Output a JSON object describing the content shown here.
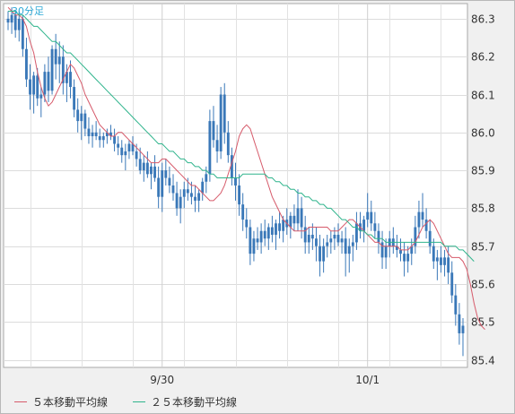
{
  "chart_data": {
    "type": "candlestick",
    "title": "30分足",
    "y_axis": {
      "position": "right",
      "range": [
        85.38,
        86.34
      ],
      "ticks": [
        "86.3",
        "86.2",
        "86.1",
        "86.0",
        "85.9",
        "85.8",
        "85.7",
        "85.6",
        "85.5",
        "85.4"
      ],
      "tick_values": [
        86.3,
        86.2,
        86.1,
        86.0,
        85.9,
        85.8,
        85.7,
        85.6,
        85.5,
        85.4
      ]
    },
    "x_axis": {
      "tick_labels": [
        "9/30",
        "10/1"
      ],
      "tick_indices": [
        42,
        98
      ]
    },
    "grid": true,
    "legend": [
      {
        "label": "５本移動平均線",
        "color": "#d65a6a"
      },
      {
        "label": "２５本移動平均線",
        "color": "#2fb48c"
      }
    ],
    "series": [
      {
        "name": "５本移動平均線",
        "color": "#d65a6a",
        "values": [
          86.33,
          86.32,
          86.31,
          86.31,
          86.3,
          86.28,
          86.24,
          86.21,
          86.16,
          86.12,
          86.09,
          86.07,
          86.08,
          86.1,
          86.12,
          86.14,
          86.16,
          86.18,
          86.17,
          86.15,
          86.13,
          86.1,
          86.08,
          86.06,
          86.04,
          86.02,
          86.01,
          86.0,
          85.99,
          85.99,
          86.0,
          86.0,
          85.99,
          85.98,
          85.97,
          85.96,
          85.95,
          85.94,
          85.93,
          85.92,
          85.92,
          85.92,
          85.93,
          85.93,
          85.92,
          85.91,
          85.9,
          85.89,
          85.88,
          85.87,
          85.86,
          85.86,
          85.85,
          85.84,
          85.83,
          85.82,
          85.82,
          85.83,
          85.84,
          85.86,
          85.89,
          85.92,
          85.95,
          85.99,
          86.01,
          86.02,
          86.01,
          85.98,
          85.95,
          85.92,
          85.89,
          85.86,
          85.83,
          85.81,
          85.79,
          85.77,
          85.76,
          85.75,
          85.74,
          85.74,
          85.74,
          85.74,
          85.75,
          85.75,
          85.75,
          85.75,
          85.75,
          85.75,
          85.74,
          85.74,
          85.74,
          85.75,
          85.76,
          85.77,
          85.77,
          85.76,
          85.75,
          85.74,
          85.73,
          85.72,
          85.71,
          85.71,
          85.7,
          85.7,
          85.7,
          85.7,
          85.7,
          85.69,
          85.69,
          85.69,
          85.7,
          85.71,
          85.73,
          85.75,
          85.76,
          85.77,
          85.76,
          85.74,
          85.72,
          85.7,
          85.68,
          85.67,
          85.67,
          85.67,
          85.66,
          85.64,
          85.6,
          85.55,
          85.51,
          85.49,
          85.48
        ]
      },
      {
        "name": "２５本移動平均線",
        "color": "#2fb48c",
        "values": [
          86.32,
          86.32,
          86.32,
          86.31,
          86.31,
          86.3,
          86.29,
          86.28,
          86.28,
          86.27,
          86.26,
          86.25,
          86.24,
          86.24,
          86.23,
          86.22,
          86.21,
          86.21,
          86.2,
          86.19,
          86.18,
          86.17,
          86.16,
          86.15,
          86.14,
          86.13,
          86.12,
          86.11,
          86.1,
          86.09,
          86.08,
          86.07,
          86.06,
          86.05,
          86.04,
          86.03,
          86.02,
          86.01,
          86.0,
          85.99,
          85.98,
          85.97,
          85.97,
          85.96,
          85.95,
          85.95,
          85.94,
          85.93,
          85.93,
          85.92,
          85.92,
          85.91,
          85.91,
          85.9,
          85.9,
          85.89,
          85.89,
          85.88,
          85.88,
          85.88,
          85.88,
          85.88,
          85.88,
          85.88,
          85.89,
          85.89,
          85.89,
          85.89,
          85.89,
          85.89,
          85.89,
          85.88,
          85.88,
          85.87,
          85.87,
          85.86,
          85.86,
          85.85,
          85.85,
          85.84,
          85.84,
          85.83,
          85.83,
          85.82,
          85.82,
          85.81,
          85.81,
          85.8,
          85.8,
          85.79,
          85.78,
          85.77,
          85.77,
          85.76,
          85.75,
          85.75,
          85.74,
          85.74,
          85.73,
          85.73,
          85.72,
          85.72,
          85.72,
          85.71,
          85.71,
          85.71,
          85.71,
          85.71,
          85.71,
          85.71,
          85.71,
          85.71,
          85.71,
          85.71,
          85.71,
          85.71,
          85.71,
          85.71,
          85.71,
          85.7,
          85.7,
          85.7,
          85.7,
          85.69,
          85.69,
          85.68,
          85.67,
          85.66
        ]
      },
      {
        "name": "candles",
        "color": "#3a78b8",
        "ohlc": [
          [
            86.3,
            86.32,
            86.27,
            86.29
          ],
          [
            86.29,
            86.33,
            86.26,
            86.31
          ],
          [
            86.31,
            86.32,
            86.25,
            86.27
          ],
          [
            86.27,
            86.32,
            86.24,
            86.3
          ],
          [
            86.3,
            86.31,
            86.2,
            86.22
          ],
          [
            86.22,
            86.25,
            86.12,
            86.14
          ],
          [
            86.14,
            86.18,
            86.06,
            86.1
          ],
          [
            86.1,
            86.16,
            86.05,
            86.15
          ],
          [
            86.15,
            86.17,
            86.07,
            86.09
          ],
          [
            86.09,
            86.12,
            86.04,
            86.1
          ],
          [
            86.1,
            86.18,
            86.08,
            86.16
          ],
          [
            86.16,
            86.2,
            86.08,
            86.11
          ],
          [
            86.11,
            86.23,
            86.1,
            86.22
          ],
          [
            86.22,
            86.26,
            86.14,
            86.18
          ],
          [
            86.18,
            86.24,
            86.13,
            86.2
          ],
          [
            86.2,
            86.23,
            86.1,
            86.13
          ],
          [
            86.13,
            86.18,
            86.08,
            86.16
          ],
          [
            86.16,
            86.19,
            86.09,
            86.12
          ],
          [
            86.12,
            86.14,
            86.04,
            86.06
          ],
          [
            86.06,
            86.09,
            86.0,
            86.03
          ],
          [
            86.03,
            86.07,
            85.98,
            86.05
          ],
          [
            86.05,
            86.06,
            85.99,
            86.01
          ],
          [
            86.01,
            86.04,
            85.97,
            85.99
          ],
          [
            85.99,
            86.02,
            85.96,
            86.0
          ],
          [
            86.0,
            86.03,
            85.98,
            85.99
          ],
          [
            85.99,
            86.01,
            85.96,
            85.98
          ],
          [
            85.98,
            86.0,
            85.96,
            85.99
          ],
          [
            85.99,
            86.01,
            85.97,
            86.0
          ],
          [
            86.0,
            86.02,
            85.98,
            85.99
          ],
          [
            85.99,
            86.01,
            85.95,
            85.97
          ],
          [
            85.97,
            85.99,
            85.94,
            85.96
          ],
          [
            85.96,
            85.98,
            85.92,
            85.94
          ],
          [
            85.94,
            85.97,
            85.9,
            85.95
          ],
          [
            85.95,
            85.98,
            85.93,
            85.97
          ],
          [
            85.97,
            85.99,
            85.94,
            85.95
          ],
          [
            85.95,
            85.97,
            85.91,
            85.93
          ],
          [
            85.93,
            85.96,
            85.89,
            85.9
          ],
          [
            85.9,
            85.94,
            85.87,
            85.92
          ],
          [
            85.92,
            85.95,
            85.88,
            85.89
          ],
          [
            85.89,
            85.92,
            85.85,
            85.91
          ],
          [
            85.91,
            85.94,
            85.87,
            85.88
          ],
          [
            85.88,
            85.91,
            85.8,
            85.83
          ],
          [
            85.83,
            85.92,
            85.79,
            85.9
          ],
          [
            85.9,
            85.93,
            85.86,
            85.88
          ],
          [
            85.88,
            85.91,
            85.84,
            85.86
          ],
          [
            85.86,
            85.89,
            85.82,
            85.84
          ],
          [
            85.84,
            85.87,
            85.78,
            85.8
          ],
          [
            85.8,
            85.85,
            85.76,
            85.83
          ],
          [
            85.83,
            85.87,
            85.8,
            85.85
          ],
          [
            85.85,
            85.88,
            85.82,
            85.84
          ],
          [
            85.84,
            85.87,
            85.81,
            85.83
          ],
          [
            85.83,
            85.86,
            85.79,
            85.82
          ],
          [
            85.82,
            85.85,
            85.79,
            85.84
          ],
          [
            85.84,
            85.88,
            85.82,
            85.87
          ],
          [
            85.87,
            85.91,
            85.84,
            85.89
          ],
          [
            85.89,
            86.06,
            85.87,
            86.03
          ],
          [
            86.03,
            86.07,
            85.96,
            85.98
          ],
          [
            85.98,
            86.02,
            85.92,
            85.95
          ],
          [
            85.95,
            86.12,
            85.93,
            86.1
          ],
          [
            86.1,
            86.13,
            85.97,
            86.0
          ],
          [
            86.0,
            86.03,
            85.92,
            85.94
          ],
          [
            85.94,
            85.96,
            85.86,
            85.88
          ],
          [
            85.88,
            85.92,
            85.82,
            85.86
          ],
          [
            85.86,
            85.89,
            85.78,
            85.81
          ],
          [
            85.81,
            85.84,
            85.74,
            85.77
          ],
          [
            85.77,
            85.8,
            85.72,
            85.75
          ],
          [
            85.75,
            85.77,
            85.65,
            85.68
          ],
          [
            85.68,
            85.74,
            85.66,
            85.72
          ],
          [
            85.72,
            85.75,
            85.69,
            85.71
          ],
          [
            85.71,
            85.76,
            85.68,
            85.74
          ],
          [
            85.74,
            85.77,
            85.7,
            85.72
          ],
          [
            85.72,
            85.76,
            85.69,
            85.75
          ],
          [
            85.75,
            85.78,
            85.71,
            85.73
          ],
          [
            85.73,
            85.77,
            85.69,
            85.76
          ],
          [
            85.76,
            85.79,
            85.72,
            85.74
          ],
          [
            85.74,
            85.78,
            85.71,
            85.77
          ],
          [
            85.77,
            85.8,
            85.73,
            85.75
          ],
          [
            85.75,
            85.79,
            85.72,
            85.78
          ],
          [
            85.78,
            85.81,
            85.74,
            85.76
          ],
          [
            85.76,
            85.85,
            85.74,
            85.8
          ],
          [
            85.8,
            85.83,
            85.72,
            85.75
          ],
          [
            85.75,
            85.78,
            85.68,
            85.71
          ],
          [
            85.71,
            85.75,
            85.68,
            85.73
          ],
          [
            85.73,
            85.76,
            85.69,
            85.72
          ],
          [
            85.72,
            85.75,
            85.66,
            85.7
          ],
          [
            85.7,
            85.73,
            85.62,
            85.66
          ],
          [
            85.66,
            85.72,
            85.63,
            85.7
          ],
          [
            85.7,
            85.73,
            85.67,
            85.71
          ],
          [
            85.71,
            85.74,
            85.68,
            85.72
          ],
          [
            85.72,
            85.75,
            85.69,
            85.73
          ],
          [
            85.73,
            85.76,
            85.7,
            85.71
          ],
          [
            85.71,
            85.74,
            85.68,
            85.72
          ],
          [
            85.72,
            85.75,
            85.62,
            85.68
          ],
          [
            85.68,
            85.72,
            85.63,
            85.7
          ],
          [
            85.7,
            85.73,
            85.66,
            85.71
          ],
          [
            85.71,
            85.79,
            85.69,
            85.76
          ],
          [
            85.76,
            85.79,
            85.72,
            85.74
          ],
          [
            85.74,
            85.78,
            85.71,
            85.77
          ],
          [
            85.77,
            85.84,
            85.75,
            85.79
          ],
          [
            85.79,
            85.82,
            85.74,
            85.76
          ],
          [
            85.76,
            85.79,
            85.72,
            85.74
          ],
          [
            85.74,
            85.76,
            85.68,
            85.71
          ],
          [
            85.71,
            85.74,
            85.64,
            85.67
          ],
          [
            85.67,
            85.72,
            85.64,
            85.7
          ],
          [
            85.7,
            85.74,
            85.67,
            85.72
          ],
          [
            85.72,
            85.75,
            85.68,
            85.7
          ],
          [
            85.7,
            85.73,
            85.67,
            85.69
          ],
          [
            85.69,
            85.72,
            85.66,
            85.68
          ],
          [
            85.68,
            85.71,
            85.62,
            85.66
          ],
          [
            85.66,
            85.7,
            85.63,
            85.68
          ],
          [
            85.68,
            85.72,
            85.65,
            85.7
          ],
          [
            85.7,
            85.78,
            85.68,
            85.75
          ],
          [
            85.75,
            85.82,
            85.72,
            85.79
          ],
          [
            85.79,
            85.84,
            85.75,
            85.77
          ],
          [
            85.77,
            85.8,
            85.72,
            85.74
          ],
          [
            85.74,
            85.77,
            85.68,
            85.7
          ],
          [
            85.7,
            85.72,
            85.64,
            85.66
          ],
          [
            85.66,
            85.69,
            85.61,
            85.67
          ],
          [
            85.67,
            85.7,
            85.63,
            85.65
          ],
          [
            85.65,
            85.69,
            85.62,
            85.67
          ],
          [
            85.67,
            85.7,
            85.6,
            85.63
          ],
          [
            85.63,
            85.66,
            85.55,
            85.57
          ],
          [
            85.57,
            85.6,
            85.49,
            85.52
          ],
          [
            85.52,
            85.55,
            85.44,
            85.47
          ],
          [
            85.47,
            85.51,
            85.41,
            85.49
          ]
        ]
      }
    ]
  }
}
